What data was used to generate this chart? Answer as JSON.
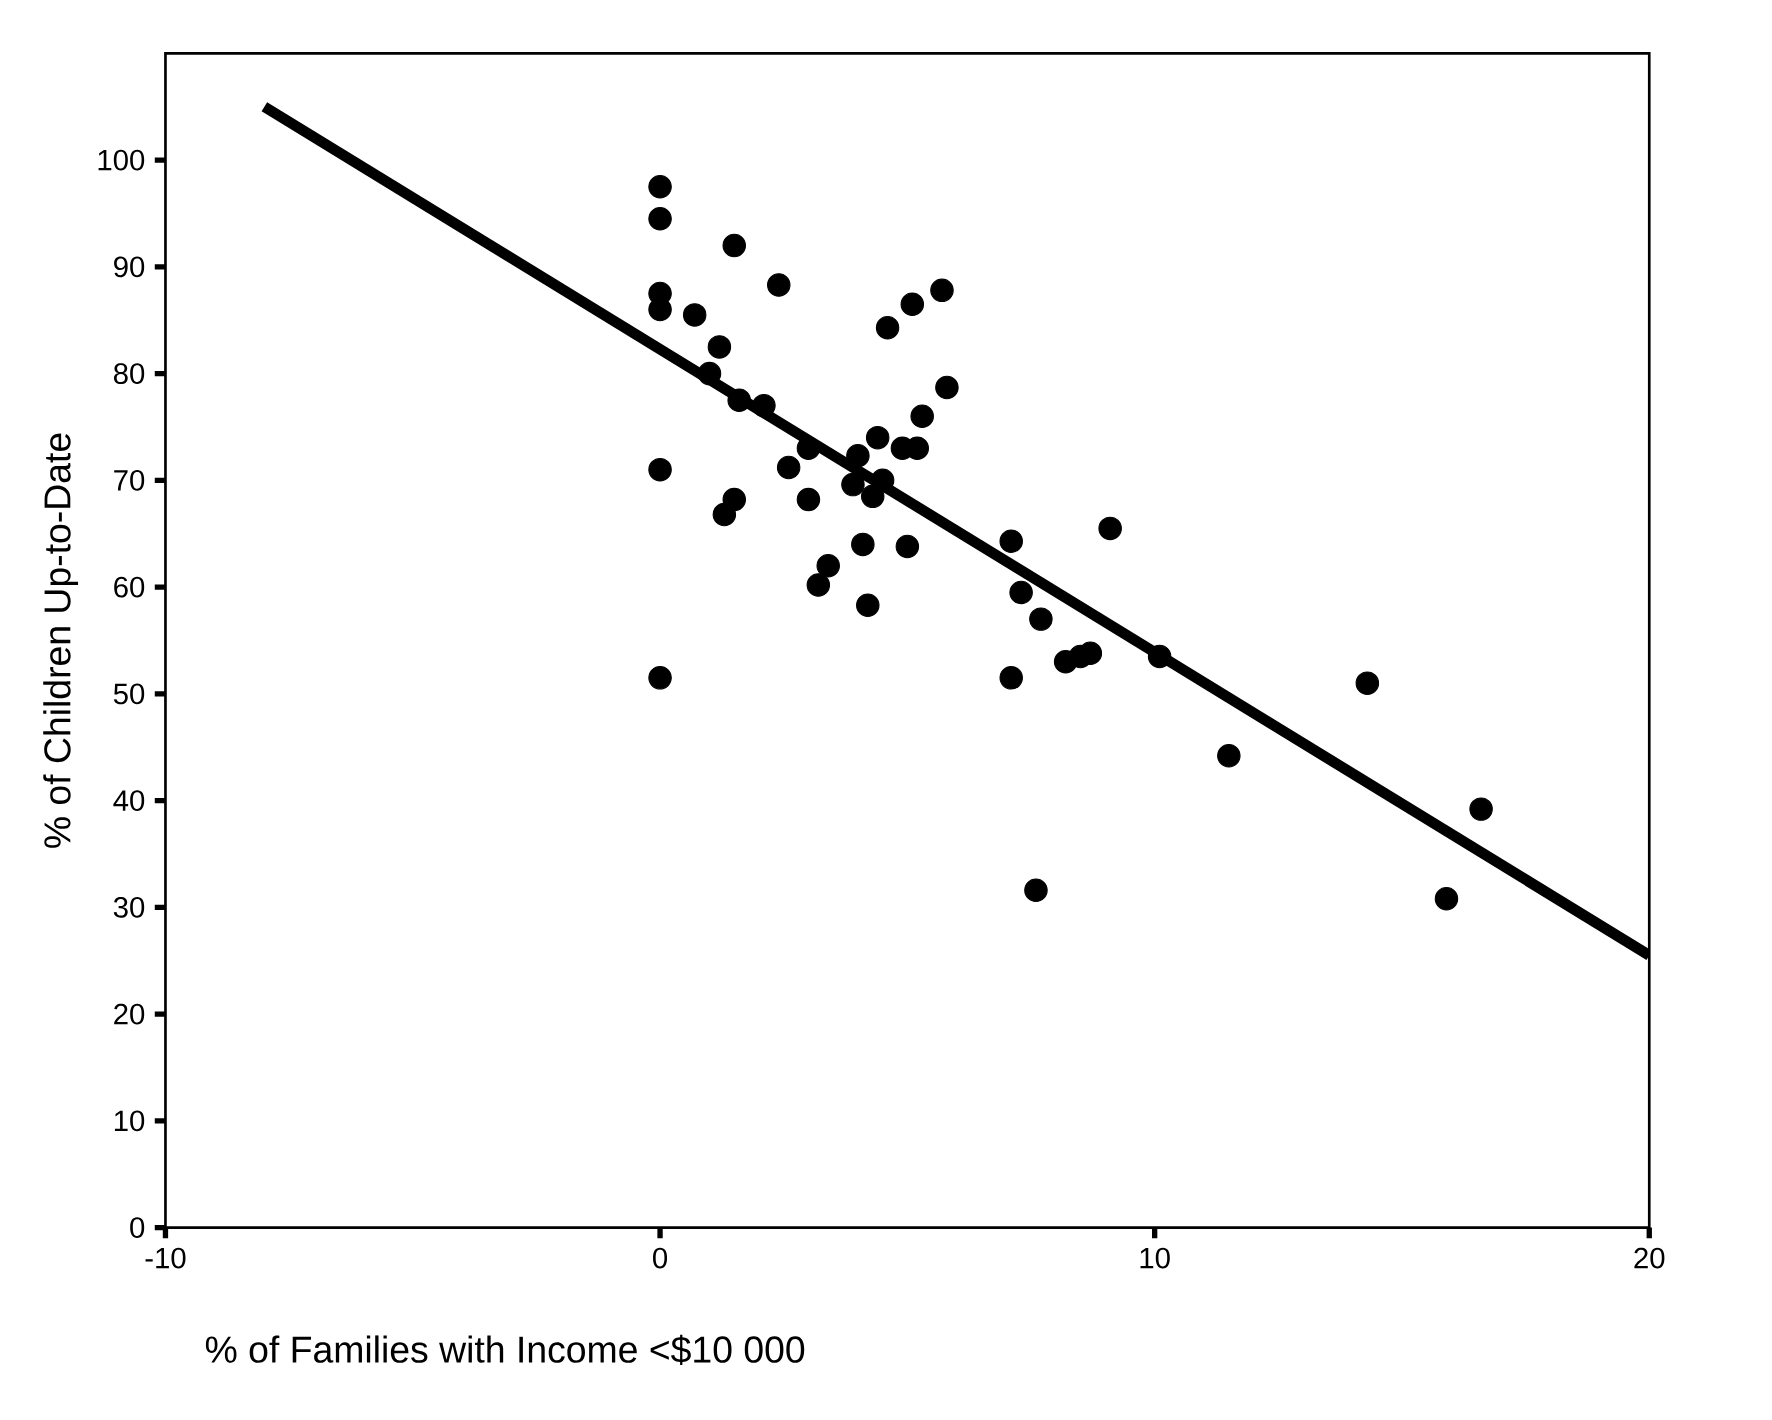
{
  "chart_data": {
    "type": "scatter",
    "xlabel": "% of Families with Income <$10 000",
    "ylabel": "% of Children Up-to-Date",
    "xlim": [
      -10,
      20
    ],
    "ylim": [
      0,
      110
    ],
    "xticks": [
      -10,
      0,
      10,
      20
    ],
    "yticks": [
      0,
      10,
      20,
      30,
      40,
      50,
      60,
      70,
      80,
      90,
      100
    ],
    "grid": false,
    "series": [
      {
        "color": "#000000",
        "marker": "circle",
        "x": [
          0,
          0,
          0,
          0,
          0,
          0,
          0.7,
          1,
          1.2,
          1.3,
          1.5,
          1.5,
          1.6,
          2.1,
          2.4,
          2.6,
          3,
          3,
          3.2,
          3.4,
          3.9,
          4,
          4.1,
          4.2,
          4.3,
          4.4,
          4.5,
          4.6,
          4.9,
          5,
          5.1,
          5.2,
          5.3,
          5.7,
          5.8,
          7.1,
          7.1,
          7.3,
          7.6,
          7.7,
          8.2,
          8.5,
          8.7,
          9.1,
          10.1,
          11.5,
          14.3,
          15.9,
          16.6
        ],
        "values": [
          97.5,
          94.5,
          87.5,
          86,
          71,
          51.5,
          85.5,
          80,
          82.5,
          66.8,
          68.2,
          92,
          77.5,
          77,
          88.3,
          71.2,
          73,
          68.2,
          60.2,
          62,
          69.6,
          72.3,
          64,
          58.3,
          68.5,
          74,
          70,
          84.3,
          73,
          63.8,
          86.5,
          73,
          76,
          87.8,
          78.7,
          64.3,
          51.5,
          59.5,
          31.6,
          57,
          53,
          53.5,
          53.8,
          65.5,
          53.5,
          44.2,
          51,
          30.8,
          39.2
        ]
      },
      {
        "type": "line",
        "color": "#000000",
        "marker": "none",
        "line_style": "solid",
        "x": [
          -8,
          20
        ],
        "values": [
          105,
          25.5
        ]
      }
    ]
  }
}
